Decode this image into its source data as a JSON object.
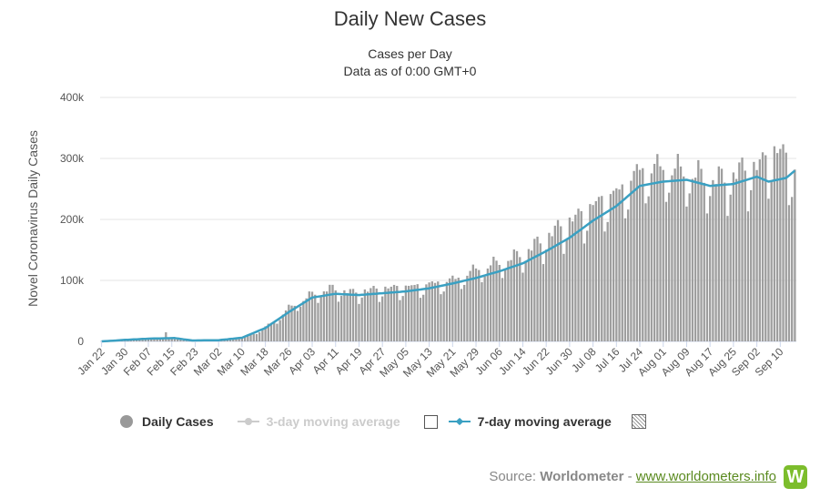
{
  "title": "Daily New Cases",
  "subtitle_1": "Cases per Day",
  "subtitle_2": "Data as of 0:00 GMT+0",
  "legend": {
    "daily_cases": "Daily Cases",
    "three_day": "3-day moving average",
    "seven_day": "7-day moving average"
  },
  "source": {
    "prefix": "Source: ",
    "name": "Worldometer",
    "separator": " - ",
    "link": "www.worldometers.info",
    "logo": "W"
  },
  "colors": {
    "bars": "#9e9e9e",
    "seven_day": "#3aa0c2",
    "three_day_disabled": "#cccccc",
    "grid": "#e6e6e6"
  },
  "chart_data": {
    "type": "bar",
    "ylabel": "Novel Coronavirus Daily Cases",
    "ylim": [
      0,
      400000
    ],
    "yticks": [
      0,
      100000,
      200000,
      300000,
      400000
    ],
    "ytick_labels": [
      "0",
      "100k",
      "200k",
      "300k",
      "400k"
    ],
    "x_start": "2020-01-22",
    "x_end": "2020-09-15",
    "xtick_labels": [
      "Jan 22",
      "Jan 30",
      "Feb 07",
      "Feb 15",
      "Feb 23",
      "Mar 02",
      "Mar 10",
      "Mar 18",
      "Mar 26",
      "Apr 03",
      "Apr 11",
      "Apr 19",
      "Apr 27",
      "May 05",
      "May 13",
      "May 21",
      "May 29",
      "Jun 06",
      "Jun 14",
      "Jun 22",
      "Jun 30",
      "Jul 08",
      "Jul 16",
      "Jul 24",
      "Aug 01",
      "Aug 09",
      "Aug 17",
      "Aug 25",
      "Sep 02",
      "Sep 10"
    ],
    "series": [
      {
        "name": "Daily Cases",
        "type": "bar",
        "key_points": [
          [
            "2020-01-22",
            0
          ],
          [
            "2020-01-30",
            2000
          ],
          [
            "2020-02-07",
            3500
          ],
          [
            "2020-02-12",
            4000
          ],
          [
            "2020-02-13",
            15000
          ],
          [
            "2020-02-14",
            5000
          ],
          [
            "2020-02-20",
            1000
          ],
          [
            "2020-02-27",
            1500
          ],
          [
            "2020-03-02",
            2000
          ],
          [
            "2020-03-06",
            4000
          ],
          [
            "2020-03-10",
            6000
          ],
          [
            "2020-03-14",
            12000
          ],
          [
            "2020-03-18",
            24000
          ],
          [
            "2020-03-22",
            36000
          ],
          [
            "2020-03-26",
            55000
          ],
          [
            "2020-03-30",
            65000
          ],
          [
            "2020-04-03",
            78000
          ],
          [
            "2020-04-10",
            87000
          ],
          [
            "2020-04-17",
            80000
          ],
          [
            "2020-04-24",
            85000
          ],
          [
            "2020-05-01",
            88000
          ],
          [
            "2020-05-08",
            90000
          ],
          [
            "2020-05-15",
            95000
          ],
          [
            "2020-05-22",
            102000
          ],
          [
            "2020-05-29",
            118000
          ],
          [
            "2020-06-05",
            128000
          ],
          [
            "2020-06-12",
            140000
          ],
          [
            "2020-06-19",
            160000
          ],
          [
            "2020-06-26",
            185000
          ],
          [
            "2020-07-03",
            205000
          ],
          [
            "2020-07-10",
            228000
          ],
          [
            "2020-07-17",
            245000
          ],
          [
            "2020-07-24",
            280000
          ],
          [
            "2020-07-31",
            285000
          ],
          [
            "2020-08-07",
            280000
          ],
          [
            "2020-08-14",
            270000
          ],
          [
            "2020-08-21",
            265000
          ],
          [
            "2020-08-28",
            280000
          ],
          [
            "2020-09-04",
            290000
          ],
          [
            "2020-09-06",
            310000
          ],
          [
            "2020-09-11",
            308000
          ],
          [
            "2020-09-15",
            275000
          ]
        ]
      },
      {
        "name": "7-day moving average",
        "type": "line",
        "key_points": [
          [
            "2020-01-22",
            0
          ],
          [
            "2020-01-30",
            2500
          ],
          [
            "2020-02-07",
            4500
          ],
          [
            "2020-02-16",
            5500
          ],
          [
            "2020-02-22",
            1500
          ],
          [
            "2020-03-02",
            2000
          ],
          [
            "2020-03-10",
            6000
          ],
          [
            "2020-03-18",
            22000
          ],
          [
            "2020-03-26",
            48000
          ],
          [
            "2020-04-03",
            72000
          ],
          [
            "2020-04-11",
            78000
          ],
          [
            "2020-04-19",
            76000
          ],
          [
            "2020-04-27",
            79000
          ],
          [
            "2020-05-05",
            82000
          ],
          [
            "2020-05-13",
            87000
          ],
          [
            "2020-05-21",
            95000
          ],
          [
            "2020-05-29",
            104000
          ],
          [
            "2020-06-06",
            115000
          ],
          [
            "2020-06-14",
            128000
          ],
          [
            "2020-06-22",
            148000
          ],
          [
            "2020-06-30",
            170000
          ],
          [
            "2020-07-08",
            198000
          ],
          [
            "2020-07-16",
            222000
          ],
          [
            "2020-07-24",
            255000
          ],
          [
            "2020-08-01",
            262000
          ],
          [
            "2020-08-09",
            265000
          ],
          [
            "2020-08-17",
            255000
          ],
          [
            "2020-08-25",
            258000
          ],
          [
            "2020-09-02",
            270000
          ],
          [
            "2020-09-06",
            262000
          ],
          [
            "2020-09-12",
            268000
          ],
          [
            "2020-09-15",
            280000
          ]
        ]
      }
    ],
    "legend_position": "bottom",
    "grid": true
  }
}
